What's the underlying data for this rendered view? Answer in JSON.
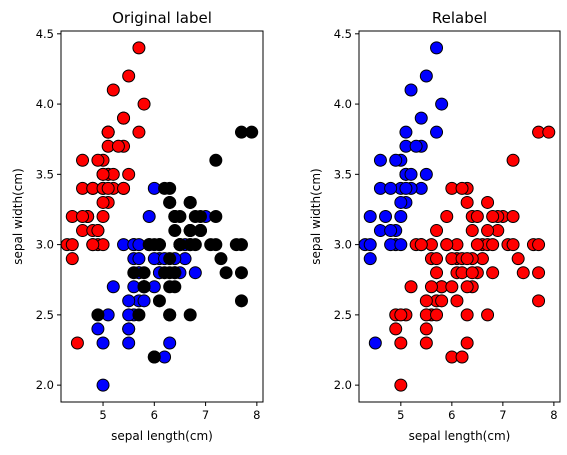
{
  "chart_data": [
    {
      "type": "scatter",
      "title": "Original label",
      "xlabel": "sepal length(cm)",
      "ylabel": "sepal width(cm)",
      "xlim": [
        4.18,
        8.12
      ],
      "ylim": [
        1.88,
        4.52
      ],
      "xticks": [
        5,
        6,
        7,
        8
      ],
      "yticks": [
        2.0,
        2.5,
        3.0,
        3.5,
        4.0,
        4.5
      ],
      "grid": false,
      "series": [
        {
          "color": "#ff0000",
          "points": [
            [
              5.1,
              3.5
            ],
            [
              4.9,
              3.0
            ],
            [
              4.7,
              3.2
            ],
            [
              4.6,
              3.1
            ],
            [
              5.0,
              3.6
            ],
            [
              5.4,
              3.9
            ],
            [
              4.6,
              3.4
            ],
            [
              5.0,
              3.4
            ],
            [
              4.4,
              2.9
            ],
            [
              4.9,
              3.1
            ],
            [
              5.4,
              3.7
            ],
            [
              4.8,
              3.4
            ],
            [
              4.8,
              3.0
            ],
            [
              4.3,
              3.0
            ],
            [
              5.8,
              4.0
            ],
            [
              5.7,
              4.4
            ],
            [
              5.4,
              3.9
            ],
            [
              5.1,
              3.5
            ],
            [
              5.7,
              3.8
            ],
            [
              5.1,
              3.8
            ],
            [
              5.4,
              3.4
            ],
            [
              5.1,
              3.7
            ],
            [
              4.6,
              3.6
            ],
            [
              5.1,
              3.3
            ],
            [
              4.8,
              3.4
            ],
            [
              5.0,
              3.0
            ],
            [
              5.0,
              3.4
            ],
            [
              5.2,
              3.5
            ],
            [
              5.2,
              3.4
            ],
            [
              4.7,
              3.2
            ],
            [
              4.8,
              3.1
            ],
            [
              5.4,
              3.4
            ],
            [
              5.2,
              4.1
            ],
            [
              5.5,
              4.2
            ],
            [
              4.9,
              3.1
            ],
            [
              5.0,
              3.2
            ],
            [
              5.5,
              3.5
            ],
            [
              4.9,
              3.6
            ],
            [
              4.4,
              3.0
            ],
            [
              5.1,
              3.4
            ],
            [
              5.0,
              3.5
            ],
            [
              4.5,
              2.3
            ],
            [
              4.4,
              3.2
            ],
            [
              5.0,
              3.5
            ],
            [
              5.1,
              3.8
            ],
            [
              4.8,
              3.0
            ],
            [
              5.1,
              3.8
            ],
            [
              4.6,
              3.2
            ],
            [
              5.3,
              3.7
            ],
            [
              5.0,
              3.3
            ]
          ]
        },
        {
          "color": "#0000ff",
          "points": [
            [
              7.0,
              3.2
            ],
            [
              6.4,
              3.2
            ],
            [
              6.9,
              3.1
            ],
            [
              5.5,
              2.3
            ],
            [
              6.5,
              2.8
            ],
            [
              5.7,
              2.8
            ],
            [
              6.3,
              3.3
            ],
            [
              4.9,
              2.4
            ],
            [
              6.6,
              2.9
            ],
            [
              5.2,
              2.7
            ],
            [
              5.0,
              2.0
            ],
            [
              5.9,
              3.0
            ],
            [
              6.0,
              2.2
            ],
            [
              6.1,
              2.9
            ],
            [
              5.6,
              2.9
            ],
            [
              6.7,
              3.1
            ],
            [
              5.6,
              3.0
            ],
            [
              5.8,
              2.7
            ],
            [
              6.2,
              2.2
            ],
            [
              5.6,
              2.5
            ],
            [
              5.9,
              3.2
            ],
            [
              6.1,
              2.8
            ],
            [
              6.3,
              2.5
            ],
            [
              6.1,
              2.8
            ],
            [
              6.4,
              2.9
            ],
            [
              6.6,
              3.0
            ],
            [
              6.8,
              2.8
            ],
            [
              6.7,
              3.0
            ],
            [
              6.0,
              2.9
            ],
            [
              5.7,
              2.6
            ],
            [
              5.5,
              2.4
            ],
            [
              5.5,
              2.4
            ],
            [
              5.8,
              2.7
            ],
            [
              6.0,
              2.7
            ],
            [
              5.4,
              3.0
            ],
            [
              6.0,
              3.4
            ],
            [
              6.7,
              3.1
            ],
            [
              6.3,
              2.3
            ],
            [
              5.6,
              3.0
            ],
            [
              5.5,
              2.5
            ],
            [
              5.5,
              2.6
            ],
            [
              6.1,
              3.0
            ],
            [
              5.8,
              2.6
            ],
            [
              5.0,
              2.3
            ],
            [
              5.6,
              2.7
            ],
            [
              5.7,
              3.0
            ],
            [
              5.7,
              2.9
            ],
            [
              6.2,
              2.9
            ],
            [
              5.1,
              2.5
            ],
            [
              5.7,
              2.8
            ]
          ]
        },
        {
          "color": "#000000",
          "points": [
            [
              6.3,
              3.3
            ],
            [
              5.8,
              2.7
            ],
            [
              7.1,
              3.0
            ],
            [
              6.3,
              2.9
            ],
            [
              6.5,
              3.0
            ],
            [
              7.6,
              3.0
            ],
            [
              4.9,
              2.5
            ],
            [
              7.3,
              2.9
            ],
            [
              6.7,
              2.5
            ],
            [
              7.2,
              3.6
            ],
            [
              6.5,
              3.2
            ],
            [
              6.4,
              2.7
            ],
            [
              6.8,
              3.0
            ],
            [
              5.7,
              2.5
            ],
            [
              5.8,
              2.8
            ],
            [
              6.4,
              3.2
            ],
            [
              6.5,
              3.0
            ],
            [
              7.7,
              3.8
            ],
            [
              7.7,
              2.6
            ],
            [
              6.0,
              2.2
            ],
            [
              6.9,
              3.2
            ],
            [
              5.6,
              2.8
            ],
            [
              7.7,
              2.8
            ],
            [
              6.3,
              2.7
            ],
            [
              6.7,
              3.3
            ],
            [
              7.2,
              3.2
            ],
            [
              6.2,
              2.8
            ],
            [
              6.1,
              3.0
            ],
            [
              6.4,
              2.8
            ],
            [
              7.2,
              3.0
            ],
            [
              7.4,
              2.8
            ],
            [
              7.9,
              3.8
            ],
            [
              6.4,
              2.8
            ],
            [
              6.3,
              2.8
            ],
            [
              6.1,
              2.6
            ],
            [
              7.7,
              3.0
            ],
            [
              6.3,
              3.4
            ],
            [
              6.4,
              3.1
            ],
            [
              6.0,
              3.0
            ],
            [
              6.9,
              3.1
            ],
            [
              6.7,
              3.1
            ],
            [
              6.9,
              3.1
            ],
            [
              5.8,
              2.7
            ],
            [
              6.8,
              3.2
            ],
            [
              6.7,
              3.3
            ],
            [
              6.7,
              3.0
            ],
            [
              6.3,
              2.5
            ],
            [
              6.5,
              3.0
            ],
            [
              6.2,
              3.4
            ],
            [
              5.9,
              3.0
            ]
          ]
        }
      ]
    },
    {
      "type": "scatter",
      "title": "Relabel",
      "xlabel": "sepal length(cm)",
      "ylabel": "sepal width(cm)",
      "xlim": [
        4.18,
        8.12
      ],
      "ylim": [
        1.88,
        4.52
      ],
      "xticks": [
        5,
        6,
        7,
        8
      ],
      "yticks": [
        2.0,
        2.5,
        3.0,
        3.5,
        4.0,
        4.5
      ],
      "grid": false,
      "series": [
        {
          "color": "#0000ff",
          "points": [
            [
              5.1,
              3.5
            ],
            [
              4.9,
              3.0
            ],
            [
              4.7,
              3.2
            ],
            [
              4.6,
              3.1
            ],
            [
              5.0,
              3.6
            ],
            [
              5.4,
              3.9
            ],
            [
              4.6,
              3.4
            ],
            [
              5.0,
              3.4
            ],
            [
              4.4,
              2.9
            ],
            [
              4.9,
              3.1
            ],
            [
              5.4,
              3.7
            ],
            [
              4.8,
              3.4
            ],
            [
              4.8,
              3.0
            ],
            [
              4.3,
              3.0
            ],
            [
              5.8,
              4.0
            ],
            [
              5.7,
              4.4
            ],
            [
              5.1,
              3.5
            ],
            [
              5.7,
              3.8
            ],
            [
              5.1,
              3.8
            ],
            [
              5.4,
              3.4
            ],
            [
              5.1,
              3.7
            ],
            [
              4.6,
              3.6
            ],
            [
              5.1,
              3.3
            ],
            [
              5.0,
              3.0
            ],
            [
              5.2,
              3.5
            ],
            [
              5.2,
              3.4
            ],
            [
              4.8,
              3.1
            ],
            [
              5.2,
              4.1
            ],
            [
              5.5,
              4.2
            ],
            [
              5.0,
              3.2
            ],
            [
              5.5,
              3.5
            ],
            [
              4.9,
              3.6
            ],
            [
              4.4,
              3.0
            ],
            [
              5.1,
              3.4
            ],
            [
              4.5,
              2.3
            ],
            [
              4.4,
              3.2
            ],
            [
              5.3,
              3.7
            ],
            [
              5.0,
              3.3
            ]
          ]
        },
        {
          "color": "#ff0000",
          "points": [
            [
              7.0,
              3.2
            ],
            [
              6.4,
              3.2
            ],
            [
              6.9,
              3.1
            ],
            [
              5.5,
              2.3
            ],
            [
              6.5,
              2.8
            ],
            [
              5.7,
              2.8
            ],
            [
              6.3,
              3.3
            ],
            [
              4.9,
              2.4
            ],
            [
              6.6,
              2.9
            ],
            [
              5.2,
              2.7
            ],
            [
              5.0,
              2.0
            ],
            [
              5.9,
              3.0
            ],
            [
              6.0,
              2.2
            ],
            [
              6.1,
              2.9
            ],
            [
              5.6,
              2.9
            ],
            [
              6.7,
              3.1
            ],
            [
              5.6,
              3.0
            ],
            [
              5.8,
              2.7
            ],
            [
              6.2,
              2.2
            ],
            [
              5.6,
              2.5
            ],
            [
              5.9,
              3.2
            ],
            [
              6.1,
              2.8
            ],
            [
              6.3,
              2.5
            ],
            [
              6.4,
              2.9
            ],
            [
              6.6,
              3.0
            ],
            [
              6.8,
              2.8
            ],
            [
              6.7,
              3.0
            ],
            [
              6.0,
              2.9
            ],
            [
              5.7,
              2.6
            ],
            [
              5.5,
              2.4
            ],
            [
              5.8,
              2.7
            ],
            [
              6.0,
              2.7
            ],
            [
              5.4,
              3.0
            ],
            [
              6.0,
              3.4
            ],
            [
              6.3,
              2.3
            ],
            [
              5.5,
              2.5
            ],
            [
              5.5,
              2.6
            ],
            [
              6.1,
              3.0
            ],
            [
              5.8,
              2.6
            ],
            [
              5.0,
              2.3
            ],
            [
              5.6,
              2.7
            ],
            [
              5.7,
              2.9
            ],
            [
              6.2,
              2.9
            ],
            [
              5.1,
              2.5
            ],
            [
              7.1,
              3.0
            ],
            [
              6.3,
              2.9
            ],
            [
              6.5,
              3.0
            ],
            [
              7.6,
              3.0
            ],
            [
              4.9,
              2.5
            ],
            [
              7.3,
              2.9
            ],
            [
              6.7,
              2.5
            ],
            [
              7.2,
              3.6
            ],
            [
              6.5,
              3.2
            ],
            [
              6.4,
              2.7
            ],
            [
              6.8,
              3.0
            ],
            [
              5.7,
              2.5
            ],
            [
              7.7,
              3.8
            ],
            [
              7.7,
              2.6
            ],
            [
              6.9,
              3.2
            ],
            [
              7.7,
              2.8
            ],
            [
              6.3,
              2.7
            ],
            [
              6.7,
              3.3
            ],
            [
              7.2,
              3.2
            ],
            [
              6.2,
              2.8
            ],
            [
              6.4,
              2.8
            ],
            [
              7.2,
              3.0
            ],
            [
              7.4,
              2.8
            ],
            [
              7.9,
              3.8
            ],
            [
              6.1,
              2.6
            ],
            [
              7.7,
              3.0
            ],
            [
              6.3,
              3.4
            ],
            [
              6.4,
              3.1
            ],
            [
              6.8,
              3.2
            ],
            [
              6.2,
              3.4
            ],
            [
              5.9,
              3.0
            ],
            [
              5.0,
              2.5
            ],
            [
              5.7,
              3.1
            ],
            [
              5.3,
              3.0
            ],
            [
              5.4,
              3.0
            ]
          ]
        }
      ]
    }
  ]
}
